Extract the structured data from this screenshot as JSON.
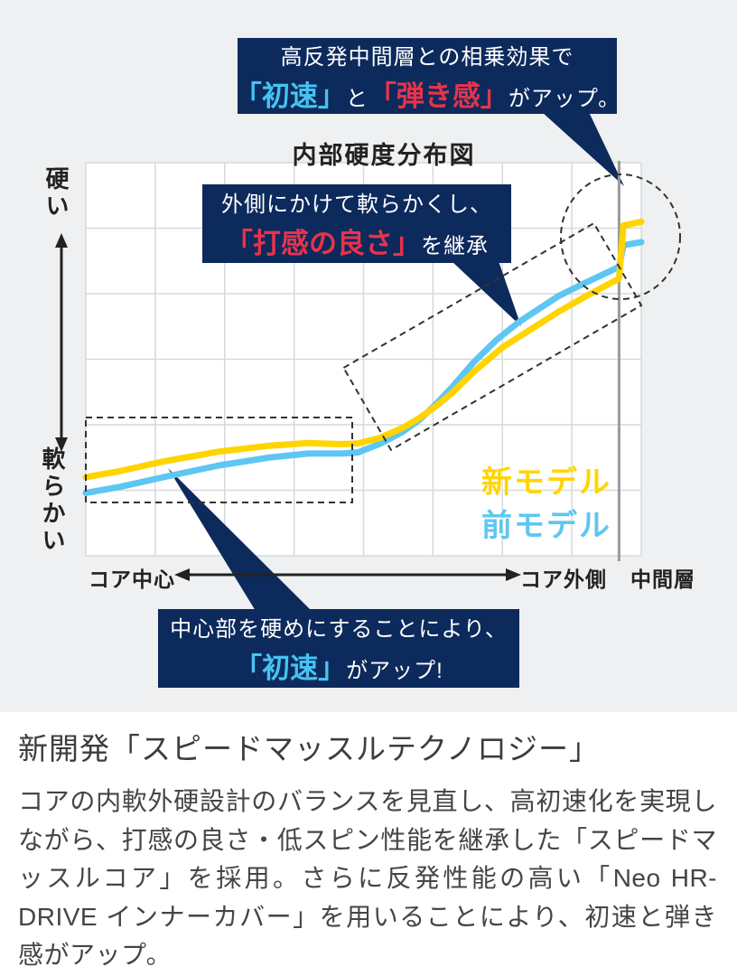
{
  "chart_data": {
    "type": "line",
    "title": "内部硬度分布図",
    "x_axis": {
      "left_label": "コア中心",
      "right_label": "コア外側",
      "outer_label": "中間層",
      "axis_type": "qualitative"
    },
    "y_axis": {
      "top_label": "硬い",
      "bottom_label": "軟らかい",
      "axis_type": "qualitative"
    },
    "grid": {
      "columns": 8,
      "rows": 6,
      "color": "#d5d9db",
      "on": true
    },
    "legend_position": "inside-right",
    "separator_x": 96,
    "separator_color": "#9a9a9a",
    "series": [
      {
        "name": "新モデル",
        "color": "#ffd400",
        "points": [
          [
            0,
            20
          ],
          [
            6,
            21.5
          ],
          [
            14,
            24
          ],
          [
            24,
            26.5
          ],
          [
            33,
            28
          ],
          [
            40,
            28.7
          ],
          [
            46,
            28.4
          ],
          [
            49,
            28.6
          ],
          [
            53,
            30
          ],
          [
            57,
            32.5
          ],
          [
            60,
            35
          ],
          [
            63,
            38
          ],
          [
            66,
            41.5
          ],
          [
            70,
            47
          ],
          [
            75,
            53
          ],
          [
            80,
            57.5
          ],
          [
            85,
            62
          ],
          [
            90,
            66
          ],
          [
            96,
            70.5
          ],
          [
            96.8,
            84
          ],
          [
            100,
            85
          ]
        ]
      },
      {
        "name": "前モデル",
        "color": "#5ec6f2",
        "points": [
          [
            0,
            16
          ],
          [
            6,
            17.5
          ],
          [
            14,
            20
          ],
          [
            24,
            23
          ],
          [
            33,
            25
          ],
          [
            40,
            26
          ],
          [
            46,
            26
          ],
          [
            49,
            26.3
          ],
          [
            53,
            28.5
          ],
          [
            57,
            31.5
          ],
          [
            60,
            34.5
          ],
          [
            63,
            38.5
          ],
          [
            66,
            43
          ],
          [
            70,
            49.5
          ],
          [
            74,
            55
          ],
          [
            78,
            59.5
          ],
          [
            85,
            66
          ],
          [
            90,
            69.5
          ],
          [
            96,
            73.5
          ],
          [
            96.8,
            79
          ],
          [
            100,
            79.8
          ]
        ]
      }
    ]
  },
  "callouts": {
    "top": {
      "line1": "高反発中間層との相乗効果で",
      "highlight1": "「初速」",
      "highlight1_color": "#45c3f2",
      "mid": "と",
      "highlight2": "「弾き感」",
      "highlight2_color": "#e8334a",
      "tail": "がアップ。"
    },
    "middle": {
      "line1": "外側にかけて軟らかくし、",
      "highlight": "「打感の良さ」",
      "highlight_color": "#e8334a",
      "tail": "を継承"
    },
    "bottom": {
      "line1": "中心部を硬めにすることにより、",
      "highlight": "「初速」",
      "highlight_color": "#45c3f2",
      "tail": "がアップ!"
    }
  },
  "description": {
    "title": "新開発「スピードマッスルテクノロジー」",
    "body": "コアの内軟外硬設計のバランスを見直し、高初速化を実現しながら、打感の良さ・低スピン性能を継承した「スピードマッスルコア」を採用。さらに反発性能の高い「Neo HR-DRIVE インナーカバー」を用いることにより、初速と弾き感がアップ。"
  },
  "colors": {
    "panel_background": "#eef0f1",
    "callout_background": "#0d2a5c",
    "annotation_dash": "#333333"
  }
}
